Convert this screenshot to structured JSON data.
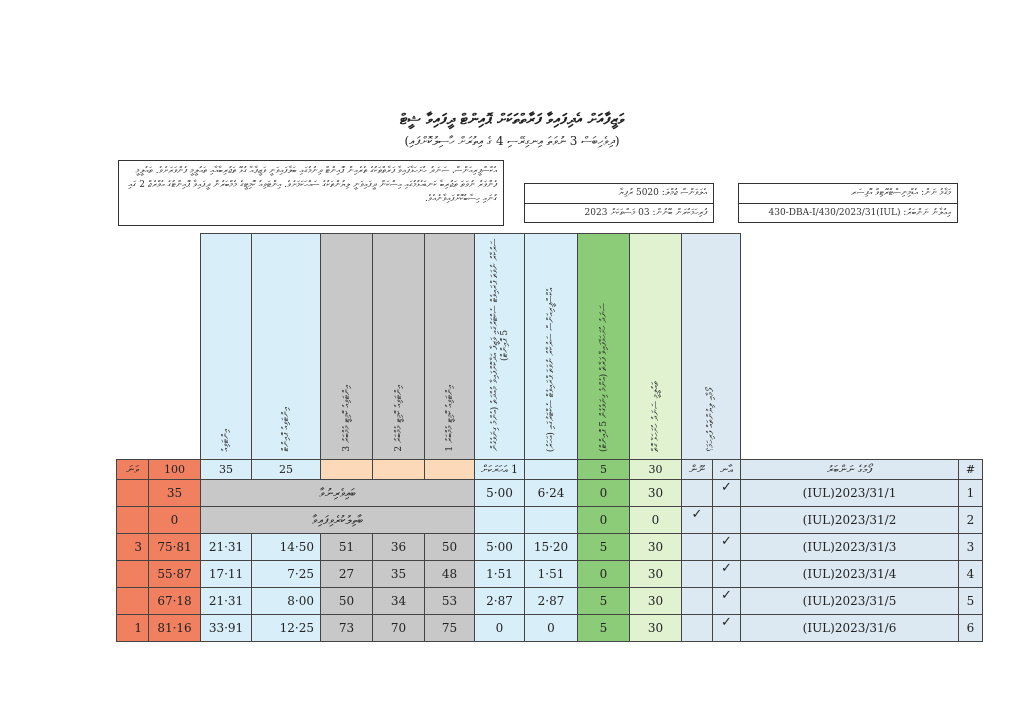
{
  "title": "ވަޒީފާއަށް އެދިފައިވާ ފަރާތްތަކަށް ޕޮއިންޓް ދީފައިވާ ޝީޓް",
  "subtitle": "(ދިވެހިބަސް 3 ނުވަތަ އިނގިރޭސި 4 ގެ އިތުރަށް ހާސިލުކޮށްފައި)",
  "note": "އެކްސްޕީރިއަންސް، ސަނަދު ހުށަހަޅާފައިވާ ފަރާތްތަކުގެ ތެރެއިން ޕޮއިންޓް ދިނުމުގައި ބަލާފައިވަނީ ވަޒީފާއާ ގުޅޭ ތަޖުރިބާއާއި ތައުލީމީ ފެންވަރަށެވެ. ތައުލީމީ ފެންވަރު ނުވަތަ ތަޖުރިބާ ކަނޑައެޅުމުގައި އިސްކަން ދީފައިވަނީ ލިޔުންތަކުގެ ސައްހަކަމަށެވެ. އިންޓަވިއު ކޮމިޓީގެ މެމްބަރުން ދީފައިވާ ޕޮއިންޓުގެ އެވްރެޖް 2 ގައި ގުނައި ހިސާބުކޮށްފައިވާނެއެވެ.",
  "info_mid": [
    "އެލަވަންސް ޖުމްލަ: 5020 ރުފިޔާ",
    "ފުރިހަމަކުރަން ބޭނުން: 03 މަސްތަކަށް 2023"
  ],
  "info_right": [
    "މަޤާމު ނަން: އެޑްމިނިސްޓްރޭޓިވް އޮފިސަރ",
    "އިޢުލާނު ނަންބަރު: (IUL)430-DBA-I/430/2023/31"
  ],
  "headers": {
    "rank": "ވަނަ",
    "total": "100",
    "cols": [
      "އިންޓަވިއު",
      "އިންޓަވިއު ޕޮއިންޓް",
      "އިންޓަވިއު ކޮމިޓީ މެމްބަރު 3",
      "އިންޓަވިއު ކޮމިޓީ މެމްބަރު 2",
      "އިންޓަވިއު ކޮމިޓީ މެމްބަރު 1",
      "ސަރުކާރު ނުވަތަ ޕްރައިވެޓް ސެކްޓަރުގައި ވަޒީފާ އަދާކޮށްފައިވާ މުއްދަތު (އެންމެ ގިނަވެގެން 5 ޕޮއިންޓް)",
      "އެކްސްޕީރިއަންސް ސަރުކާރު ނުވަތަ ޕްރައިވެޓް ސެކްޓަރުގައި (އަހަރު)",
      "ސަނަދު ހުށަހަޅާފައިވާ ފަރާތް (އެންމެ ގިނަވެގެން 5 ޕޮއިންޓް)",
      "ތައުލީމީ ސަނަދު ހުށަހަޅާ ގޮތް",
      "ފޯމާއި ލިޔުންތައް ފުރިހަމަ؟"
    ],
    "maxes": [
      "35",
      "25",
      "",
      "",
      "",
      "1 އަހަރަކަށް",
      "",
      "5",
      "30"
    ],
    "complete": "ނޫން",
    "complete_yes": "އާނ",
    "name": "ފޯމުގެ ނަންބަރު",
    "index": "#"
  },
  "rows": [
    {
      "rank": "",
      "total": "35",
      "merged": "ބައިވެރިނުވާ",
      "exp_pts": "5·00",
      "exp_years": "6·24",
      "qual_pts": "0",
      "qual": "30",
      "no": "",
      "yes": "✓",
      "ref": "(IUL)2023/31/1",
      "index": "1"
    },
    {
      "rank": "",
      "total": "0",
      "merged": "ބާތިލުކުރެވިފައިވާ",
      "exp_pts": "",
      "exp_years": "",
      "qual_pts": "0",
      "qual": "0",
      "no": "✓",
      "yes": "",
      "ref": "(IUL)2023/31/2",
      "index": "2"
    },
    {
      "rank": "3",
      "total": "75·81",
      "int": "21·31",
      "int_pts": "14·50",
      "m3": "51",
      "m2": "36",
      "m1": "50",
      "exp_pts": "5·00",
      "exp_years": "15·20",
      "qual_pts": "5",
      "qual": "30",
      "no": "",
      "yes": "✓",
      "ref": "(IUL)2023/31/3",
      "index": "3"
    },
    {
      "rank": "",
      "total": "55·87",
      "int": "17·11",
      "int_pts": "7·25",
      "m3": "27",
      "m2": "35",
      "m1": "48",
      "exp_pts": "1·51",
      "exp_years": "1·51",
      "qual_pts": "0",
      "qual": "30",
      "no": "",
      "yes": "✓",
      "ref": "(IUL)2023/31/4",
      "index": "4"
    },
    {
      "rank": "",
      "total": "67·18",
      "int": "21·31",
      "int_pts": "8·00",
      "m3": "50",
      "m2": "34",
      "m1": "53",
      "exp_pts": "2·87",
      "exp_years": "2·87",
      "qual_pts": "5",
      "qual": "30",
      "no": "",
      "yes": "✓",
      "ref": "(IUL)2023/31/5",
      "index": "5"
    },
    {
      "rank": "1",
      "total": "81·16",
      "int": "33·91",
      "int_pts": "12·25",
      "m3": "73",
      "m2": "70",
      "m1": "75",
      "exp_pts": "0",
      "exp_years": "0",
      "qual_pts": "5",
      "qual": "30",
      "no": "",
      "yes": "✓",
      "ref": "(IUL)2023/31/6",
      "index": "6"
    }
  ]
}
